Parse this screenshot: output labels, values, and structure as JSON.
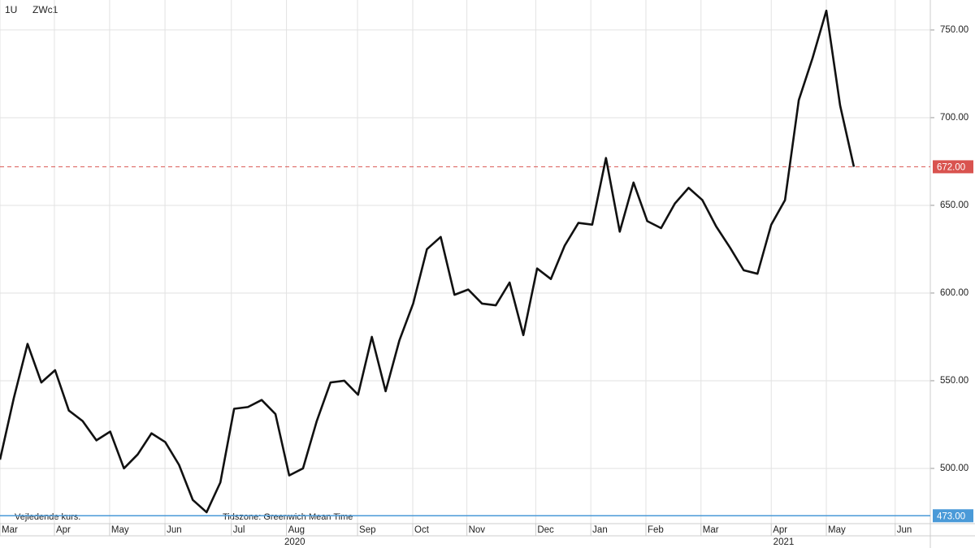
{
  "chart_data": {
    "type": "line",
    "instrument": "1U",
    "symbol": "ZWc1",
    "note": "Vejledende kurs.",
    "timezone": "Tidszone: Greenwich Mean Time",
    "color": "#111111",
    "grid": true,
    "values": [
      505,
      540,
      571,
      549,
      556,
      533,
      527,
      516,
      521,
      500,
      508,
      520,
      515,
      502,
      482,
      475,
      492,
      534,
      535,
      539,
      531,
      496,
      500,
      527,
      549,
      550,
      542,
      575,
      544,
      573,
      594,
      625,
      632,
      599,
      602,
      594,
      593,
      606,
      576,
      614,
      608,
      627,
      640,
      639,
      677,
      635,
      663,
      641,
      637,
      651,
      660,
      653,
      638,
      626,
      613,
      611,
      639,
      653,
      710,
      734,
      761,
      707,
      672
    ],
    "xlim": [
      0,
      67.55
    ],
    "xticks": [
      {
        "value": 0,
        "label": "Mar"
      },
      {
        "value": 3.95,
        "label": "Apr"
      },
      {
        "value": 7.96,
        "label": "May"
      },
      {
        "value": 11.98,
        "label": "Jun"
      },
      {
        "value": 16.8,
        "label": "Jul"
      },
      {
        "value": 20.8,
        "label": "Aug"
      },
      {
        "value": 25.96,
        "label": "Sep"
      },
      {
        "value": 29.97,
        "label": "Oct"
      },
      {
        "value": 33.9,
        "label": "Nov"
      },
      {
        "value": 38.9,
        "label": "Dec"
      },
      {
        "value": 42.9,
        "label": "Jan"
      },
      {
        "value": 46.9,
        "label": "Feb"
      },
      {
        "value": 50.9,
        "label": "Mar"
      },
      {
        "value": 56.0,
        "label": "Apr"
      },
      {
        "value": 60.0,
        "label": "May"
      },
      {
        "value": 65.0,
        "label": "Jun"
      }
    ],
    "year_labels": [
      {
        "value": 21.4,
        "label": "2020"
      },
      {
        "value": 56.9,
        "label": "2021"
      }
    ],
    "ylim": [
      468.5,
      767.1
    ],
    "yticks": [
      {
        "value": 500,
        "label": "500.00"
      },
      {
        "value": 550,
        "label": "550.00"
      },
      {
        "value": 600,
        "label": "600.00"
      },
      {
        "value": 650,
        "label": "650.00"
      },
      {
        "value": 700,
        "label": "700.00"
      },
      {
        "value": 750,
        "label": "750.00"
      }
    ],
    "reference_lines": [
      {
        "value": 672,
        "label": "672.00",
        "color": "#d9534f",
        "dashed": true
      },
      {
        "value": 473,
        "label": "473.00",
        "color": "#4a9ad8",
        "dashed": false
      }
    ]
  }
}
